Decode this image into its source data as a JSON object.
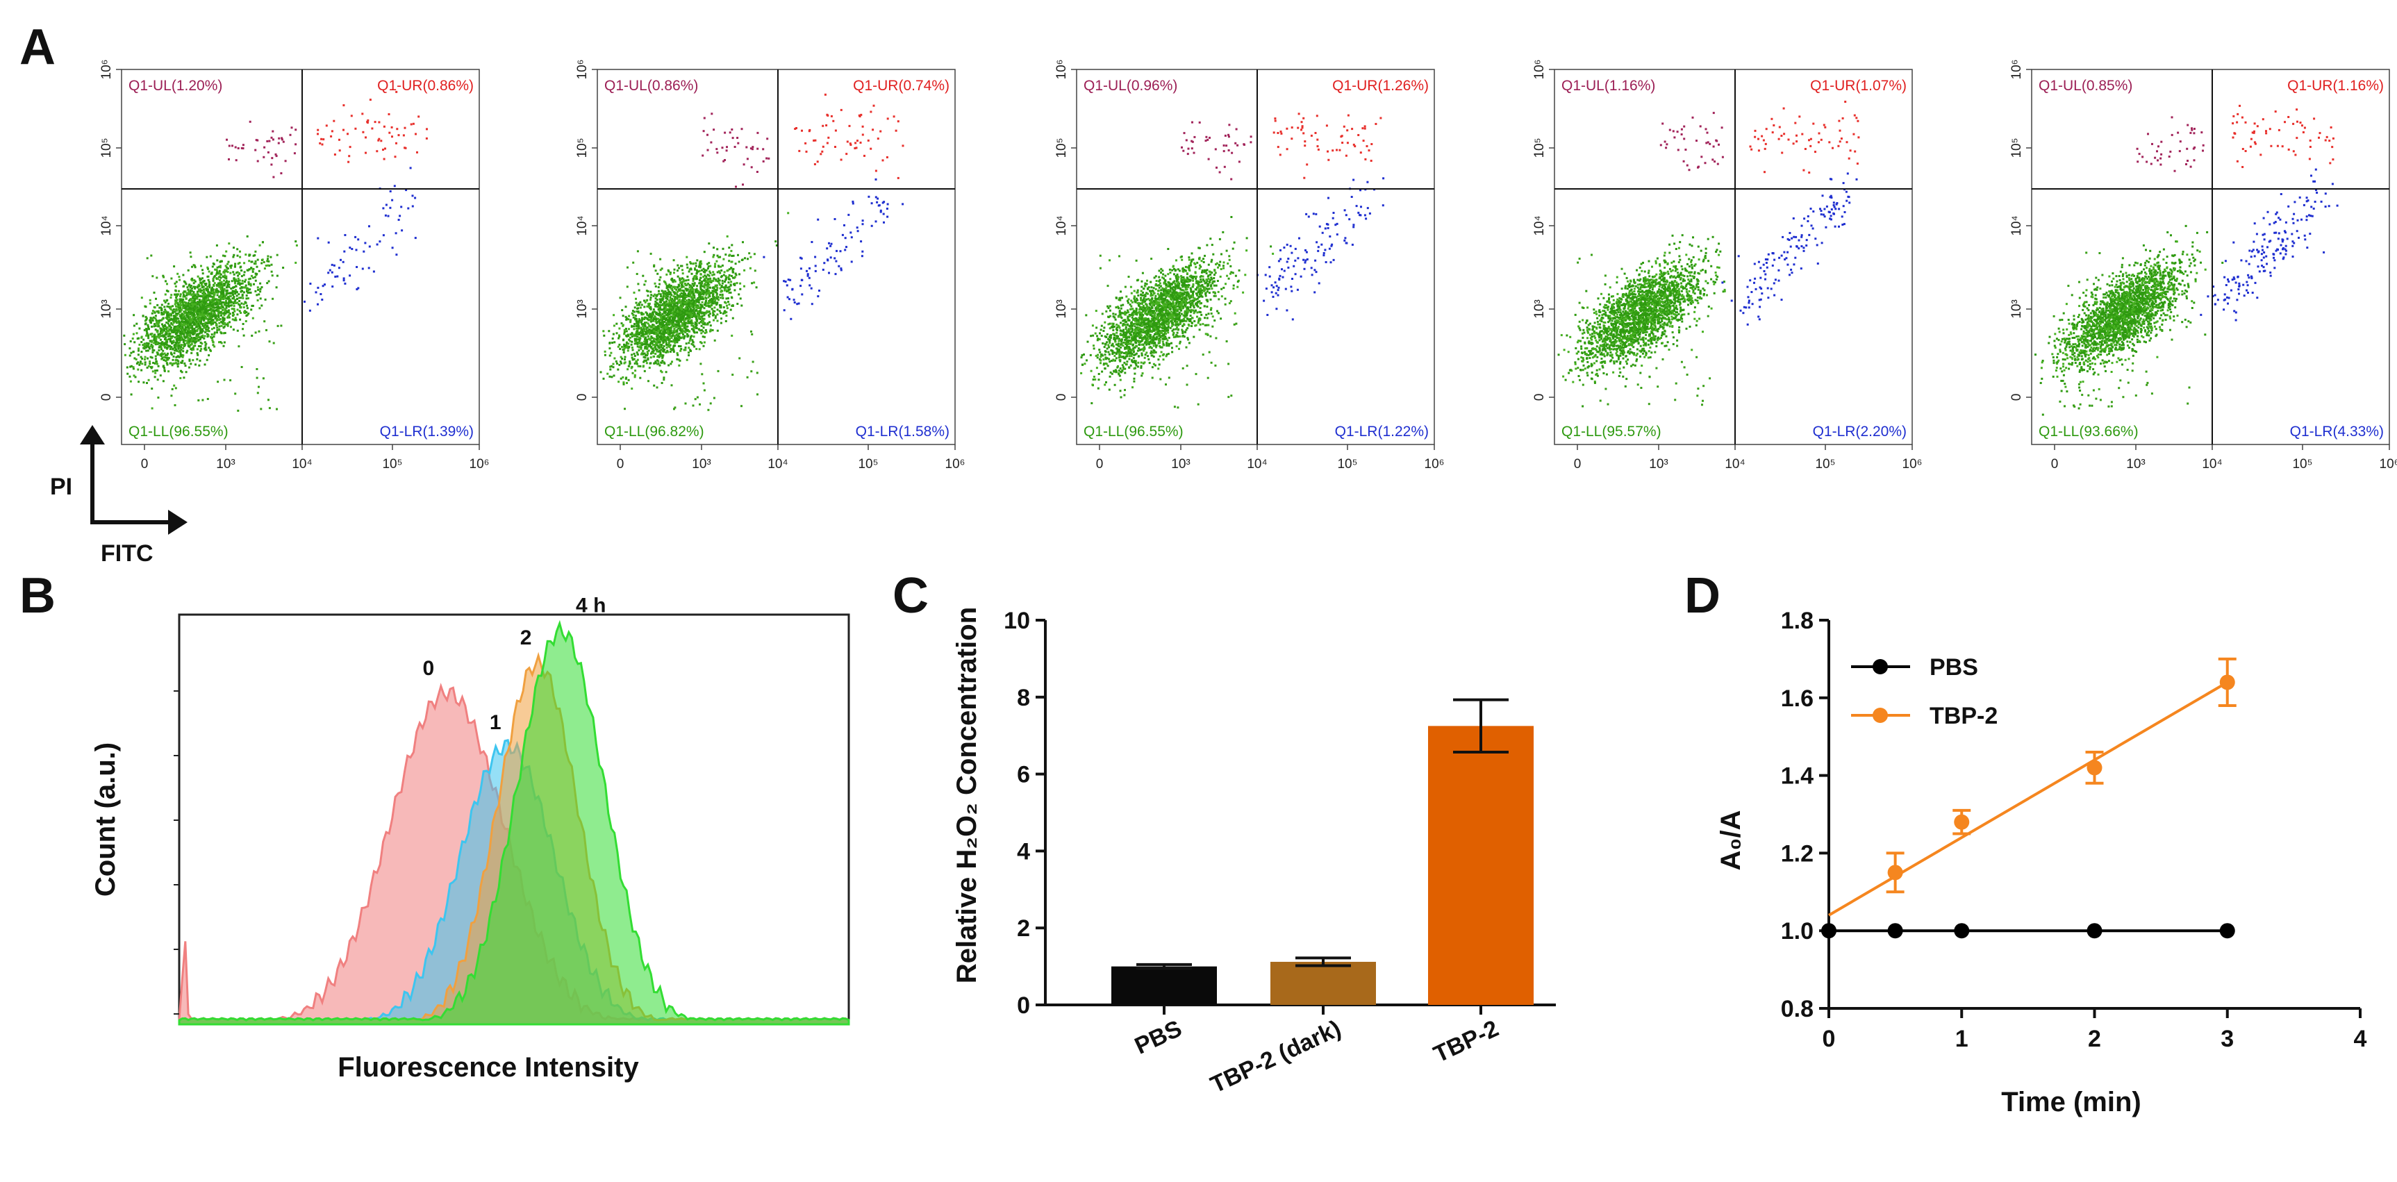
{
  "panel_labels": [
    "A",
    "B",
    "C",
    "D"
  ],
  "chart_data": [
    {
      "panel": "A",
      "type": "scatter",
      "subtype": "flow-cytometry-quadrant",
      "x_ticks": [
        "0",
        "10³",
        "10⁴",
        "10⁵",
        "10⁶"
      ],
      "y_ticks": [
        "0",
        "10³",
        "10⁴",
        "10⁵",
        "10⁶"
      ],
      "axis_arrows": {
        "y": "PI",
        "x": "FITC"
      },
      "plots": [
        {
          "UL": "Q1-UL(1.20%)",
          "UR": "Q1-UR(0.86%)",
          "LL": "Q1-LL(96.55%)",
          "LR": "Q1-LR(1.39%)"
        },
        {
          "UL": "Q1-UL(0.86%)",
          "UR": "Q1-UR(0.74%)",
          "LL": "Q1-LL(96.82%)",
          "LR": "Q1-LR(1.58%)"
        },
        {
          "UL": "Q1-UL(0.96%)",
          "UR": "Q1-UR(1.26%)",
          "LL": "Q1-LL(96.55%)",
          "LR": "Q1-LR(1.22%)"
        },
        {
          "UL": "Q1-UL(1.16%)",
          "UR": "Q1-UR(1.07%)",
          "LL": "Q1-LL(95.57%)",
          "LR": "Q1-LR(2.20%)"
        },
        {
          "UL": "Q1-UL(0.85%)",
          "UR": "Q1-UR(1.16%)",
          "LL": "Q1-LL(93.66%)",
          "LR": "Q1-LR(4.33%)"
        }
      ]
    },
    {
      "panel": "B",
      "type": "area",
      "subtype": "histogram-overlay",
      "xlabel": "Fluorescence Intensity",
      "ylabel": "Count (a.u.)",
      "series": [
        {
          "name": "0",
          "color": "#f08080",
          "peak": 0.4,
          "width": 0.085,
          "height": 0.81
        },
        {
          "name": "1",
          "color": "#3ec5ef",
          "peak": 0.49,
          "width": 0.07,
          "height": 0.68
        },
        {
          "name": "2",
          "color": "#f0a040",
          "peak": 0.535,
          "width": 0.06,
          "height": 0.88
        },
        {
          "name": "4 h",
          "color": "#33dd33",
          "peak": 0.57,
          "width": 0.065,
          "height": 0.96
        }
      ]
    },
    {
      "panel": "C",
      "type": "bar",
      "ylabel": "Relative H₂O₂ Concentration",
      "categories": [
        "PBS",
        "TBP-2 (dark)",
        "TBP-2"
      ],
      "values": [
        1.0,
        1.12,
        7.25
      ],
      "errors": [
        0.05,
        0.1,
        0.68
      ],
      "colors": [
        "#0a0a0a",
        "#a8691b",
        "#e06000"
      ],
      "ylim": [
        0,
        10
      ],
      "yticks": [
        "0",
        "2",
        "4",
        "6",
        "8",
        "10"
      ]
    },
    {
      "panel": "D",
      "type": "line",
      "xlabel": "Time (min)",
      "ylabel": "A₀/A",
      "xlim": [
        0,
        4
      ],
      "ylim": [
        0.8,
        1.8
      ],
      "xticks": [
        "0",
        "1",
        "2",
        "3",
        "4"
      ],
      "yticks": [
        "0.8",
        "1.0",
        "1.2",
        "1.4",
        "1.6",
        "1.8"
      ],
      "series": [
        {
          "name": "PBS",
          "color": "#000000",
          "x": [
            0,
            0.5,
            1,
            2,
            3
          ],
          "y": [
            1.0,
            1.0,
            1.0,
            1.0,
            1.0
          ],
          "err": [
            0,
            0,
            0,
            0,
            0
          ],
          "fit": [
            1.0,
            0.0
          ]
        },
        {
          "name": "TBP-2",
          "color": "#f5861f",
          "x": [
            0.5,
            1,
            2,
            3
          ],
          "y": [
            1.15,
            1.28,
            1.42,
            1.64
          ],
          "err": [
            0.05,
            0.03,
            0.04,
            0.06
          ],
          "fit": [
            1.04,
            0.2
          ]
        }
      ]
    }
  ]
}
